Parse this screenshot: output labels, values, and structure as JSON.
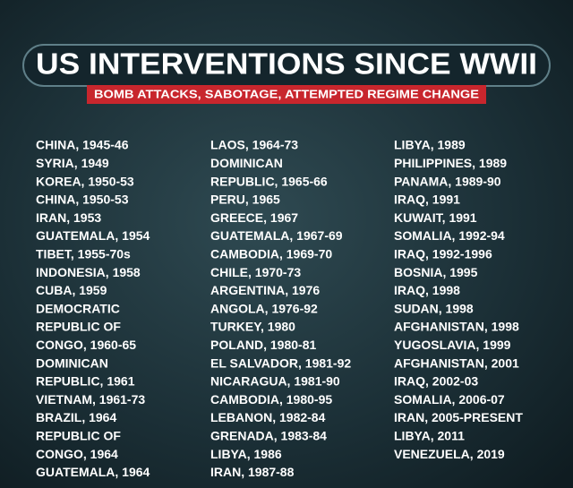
{
  "header": {
    "title": "US INTERVENTIONS SINCE WWII",
    "subtitle": "BOMB ATTACKS, SABOTAGE, ATTEMPTED REGIME CHANGE"
  },
  "columns": [
    [
      "CHINA, 1945-46",
      "SYRIA, 1949",
      "KOREA, 1950-53",
      "CHINA, 1950-53",
      "IRAN, 1953",
      "GUATEMALA, 1954",
      "TIBET, 1955-70s",
      "INDONESIA, 1958",
      "CUBA, 1959",
      "DEMOCRATIC",
      "REPUBLIC OF",
      "CONGO, 1960-65",
      "DOMINICAN",
      "REPUBLIC, 1961",
      "VIETNAM, 1961-73",
      "BRAZIL, 1964",
      "REPUBLIC OF",
      "CONGO, 1964",
      "GUATEMALA, 1964"
    ],
    [
      "LAOS, 1964-73",
      "DOMINICAN",
      "REPUBLIC, 1965-66",
      "PERU, 1965",
      "GREECE, 1967",
      "GUATEMALA, 1967-69",
      "CAMBODIA, 1969-70",
      "CHILE, 1970-73",
      "ARGENTINA, 1976",
      "ANGOLA, 1976-92",
      "TURKEY, 1980",
      "POLAND, 1980-81",
      "EL SALVADOR, 1981-92",
      "NICARAGUA, 1981-90",
      "CAMBODIA, 1980-95",
      "LEBANON, 1982-84",
      "GRENADA, 1983-84",
      "LIBYA, 1986",
      "IRAN, 1987-88"
    ],
    [
      "LIBYA, 1989",
      "PHILIPPINES, 1989",
      "PANAMA, 1989-90",
      "IRAQ, 1991",
      "KUWAIT, 1991",
      "SOMALIA, 1992-94",
      "IRAQ, 1992-1996",
      "BOSNIA, 1995",
      "IRAQ, 1998",
      "SUDAN, 1998",
      "AFGHANISTAN, 1998",
      "YUGOSLAVIA, 1999",
      "AFGHANISTAN, 2001",
      "IRAQ, 2002-03",
      "SOMALIA, 2006-07",
      "IRAN, 2005-PRESENT",
      "LIBYA, 2011",
      "VENEZUELA, 2019"
    ]
  ]
}
